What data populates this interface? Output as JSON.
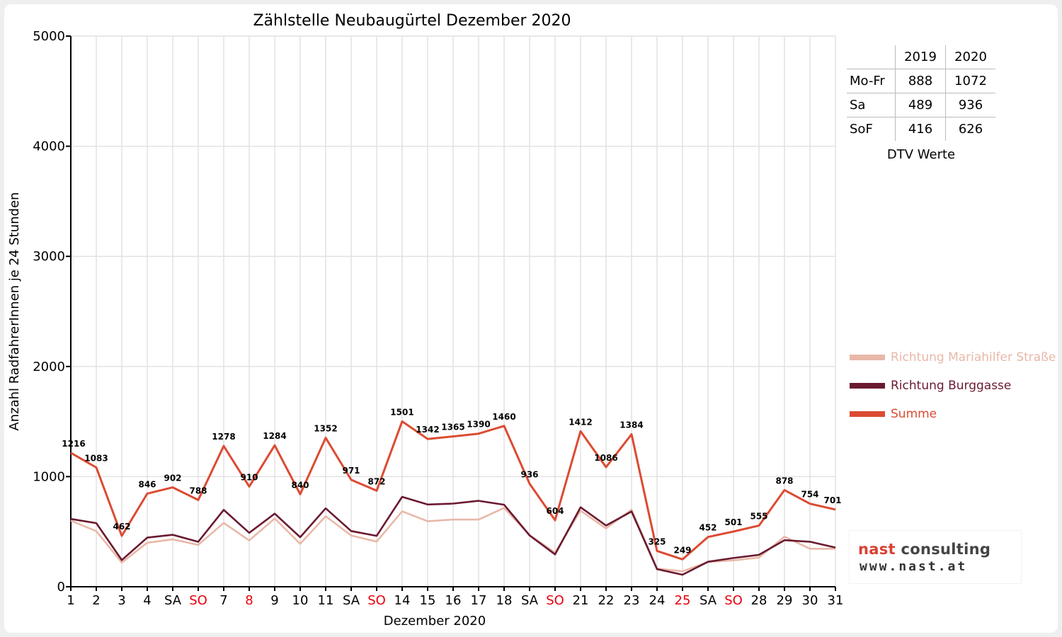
{
  "chart_data": {
    "type": "line",
    "title": "Zählstelle Neubaugürtel Dezember 2020",
    "xlabel": "Dezember 2020",
    "ylabel": "Anzahl RadfahrerInnen je 24 Stunden",
    "ylim": [
      0,
      5000
    ],
    "yticks": [
      0,
      1000,
      2000,
      3000,
      4000,
      5000
    ],
    "grid": true,
    "legend_position": "right",
    "categories": [
      "1",
      "2",
      "3",
      "4",
      "SA",
      "SO",
      "7",
      "8",
      "9",
      "10",
      "11",
      "SA",
      "SO",
      "14",
      "15",
      "16",
      "17",
      "18",
      "SA",
      "SO",
      "21",
      "22",
      "23",
      "24",
      "25",
      "SA",
      "SO",
      "28",
      "29",
      "30",
      "31"
    ],
    "highlighted_categories": [
      "SO",
      "8",
      "25"
    ],
    "highlight_color": "#e8000b",
    "series": [
      {
        "name": "Richtung Mariahilfer Straße",
        "color": "#e8b8a8",
        "values": [
          600,
          505,
          220,
          400,
          430,
          380,
          580,
          420,
          620,
          390,
          640,
          465,
          410,
          685,
          595,
          610,
          610,
          715,
          470,
          310,
          690,
          530,
          700,
          165,
          140,
          225,
          240,
          265,
          455,
          345,
          345
        ]
      },
      {
        "name": "Richtung Burggasse",
        "color": "#6a1a30",
        "values": [
          616,
          578,
          242,
          446,
          472,
          408,
          698,
          490,
          664,
          450,
          712,
          506,
          462,
          816,
          747,
          755,
          780,
          745,
          466,
          294,
          722,
          556,
          684,
          160,
          109,
          227,
          261,
          290,
          423,
          409,
          356
        ]
      },
      {
        "name": "Summe",
        "color": "#dc4b32",
        "values": [
          1216,
          1083,
          462,
          846,
          902,
          788,
          1278,
          910,
          1284,
          840,
          1352,
          971,
          872,
          1501,
          1342,
          1365,
          1390,
          1460,
          936,
          604,
          1412,
          1086,
          1384,
          325,
          249,
          452,
          501,
          555,
          878,
          754,
          701
        ],
        "data_labels": [
          "1216",
          "1083",
          "462",
          "846",
          "902",
          "788",
          "1278",
          "910",
          "1284",
          "840",
          "1352",
          "971",
          "872",
          "1501",
          "1342",
          "1365",
          "1390",
          "1460",
          "936",
          "604",
          "1412",
          "1086",
          "1384",
          "325",
          "249",
          "452",
          "501",
          "555",
          "878",
          "754",
          "701"
        ]
      }
    ]
  },
  "dtv_table": {
    "headers": [
      "",
      "2019",
      "2020"
    ],
    "rows": [
      {
        "label": "Mo-Fr",
        "y2019": "888",
        "y2020": "1072"
      },
      {
        "label": "Sa",
        "y2019": "489",
        "y2020": "936"
      },
      {
        "label": "SoF",
        "y2019": "416",
        "y2020": "626"
      }
    ],
    "caption": "DTV Werte"
  },
  "logo": {
    "line1_brand": "nast",
    "line1_rest": " consulting",
    "line2": "www.nast.at"
  }
}
